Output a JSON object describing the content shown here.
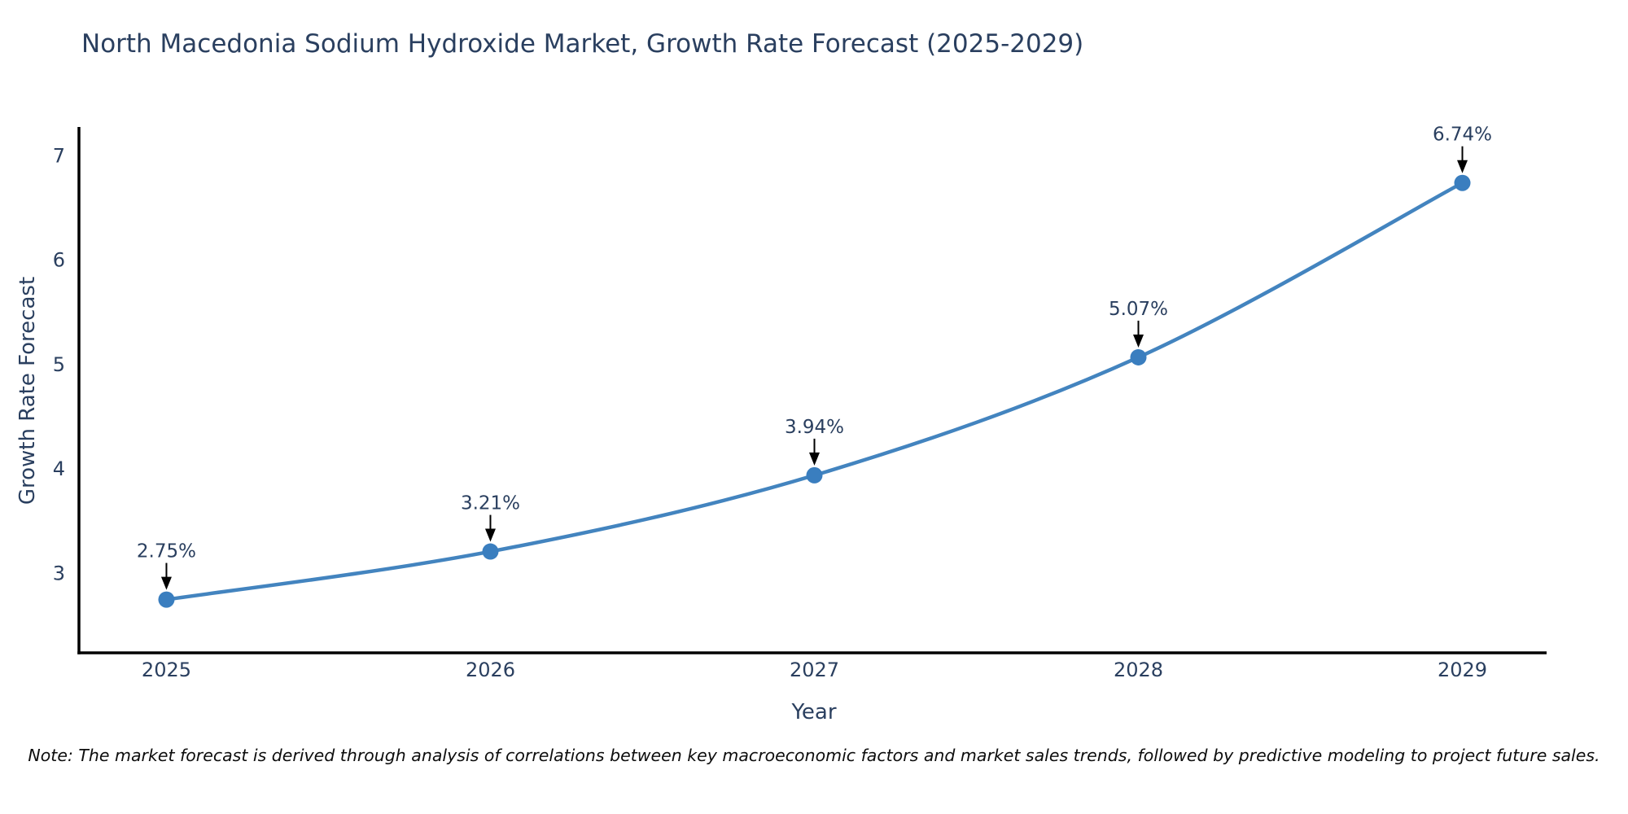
{
  "chart_data": {
    "type": "line",
    "title": "North Macedonia Sodium Hydroxide Market, Growth Rate Forecast (2025-2029)",
    "xlabel": "Year",
    "ylabel": "Growth Rate Forecast",
    "x": [
      2025,
      2026,
      2027,
      2028,
      2029
    ],
    "values": [
      2.75,
      3.21,
      3.94,
      5.07,
      6.74
    ],
    "point_labels": [
      "2.75%",
      "3.21%",
      "3.94%",
      "5.07%",
      "6.74%"
    ],
    "xticks": [
      2025,
      2026,
      2027,
      2028,
      2029
    ],
    "yticks": [
      3,
      4,
      5,
      6,
      7
    ],
    "xlim": [
      2024.73,
      2029.26
    ],
    "ylim": [
      2.24,
      7.26
    ],
    "grid": false,
    "legend": "none",
    "line_color": "#4384bf",
    "marker_color": "#3a7ebf",
    "arrow_color": "#000000",
    "axis_color": "#000000",
    "text_color": "#2a3f5f"
  },
  "note": "Note: The market forecast is derived through analysis of correlations between key macroeconomic factors and market sales trends, followed by predictive modeling to project future sales."
}
